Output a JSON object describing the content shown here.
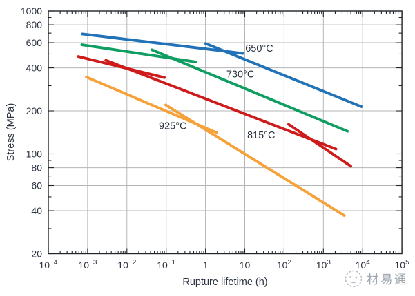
{
  "watermark": {
    "text": "材易通",
    "logo": "panda-face-icon"
  },
  "colors": {
    "axis": "#1f2429",
    "grid": "#b5b5b5",
    "text": "#2b3340",
    "watermark": "#b6bec5",
    "background": "#ffffff"
  },
  "chart_data": {
    "type": "line",
    "title": "",
    "xlabel": "Rupture lifetime (h)",
    "ylabel": "Stress (MPa)",
    "x_scale": "log",
    "y_scale": "log",
    "xlim": [
      0.0001,
      100000
    ],
    "ylim": [
      20,
      1000
    ],
    "grid": "major-gridlines-on",
    "legend": "inline-labels",
    "x_ticks": {
      "labels": [
        {
          "v": 0.0001,
          "base": "10",
          "sup": "−4"
        },
        {
          "v": 0.001,
          "base": "10",
          "sup": "−3"
        },
        {
          "v": 0.01,
          "base": "10",
          "sup": "−2"
        },
        {
          "v": 0.1,
          "base": "10",
          "sup": "−1"
        },
        {
          "v": 1,
          "base": "1",
          "sup": ""
        },
        {
          "v": 10,
          "base": "10",
          "sup": ""
        },
        {
          "v": 100,
          "base": "10",
          "sup": "2"
        },
        {
          "v": 1000,
          "base": "10",
          "sup": "3"
        },
        {
          "v": 10000,
          "base": "10",
          "sup": "4"
        },
        {
          "v": 100000,
          "base": "10",
          "sup": "5"
        }
      ],
      "grid_decades": [
        -3,
        -2,
        -1,
        0,
        1,
        2,
        3,
        4
      ],
      "minor_decades": [
        -4,
        -3,
        -2,
        -1,
        0,
        1,
        2,
        3,
        4
      ]
    },
    "y_ticks": {
      "labeled": [
        20,
        40,
        60,
        80,
        100,
        200,
        400,
        600,
        800,
        1000
      ],
      "minor": [
        30,
        50,
        70,
        90,
        300,
        500,
        700,
        900
      ],
      "grid": [
        40,
        60,
        80,
        100,
        200,
        400,
        600,
        800
      ]
    },
    "series": [
      {
        "name": "650°C",
        "color": "#2272b8",
        "label_t": 10.3,
        "label_s": 550,
        "segments": [
          [
            [
              0.00073,
              690
            ],
            [
              8.9,
              505
            ]
          ],
          [
            [
              1.0,
              592
            ],
            [
              9300,
              214
            ]
          ]
        ]
      },
      {
        "name": "730°C",
        "color": "#0f9d62",
        "label_t": 3.4,
        "label_s": 362,
        "segments": [
          [
            [
              0.00071,
              580
            ],
            [
              0.56,
              440
            ]
          ],
          [
            [
              0.043,
              535
            ],
            [
              4100,
              144
            ]
          ]
        ]
      },
      {
        "name": "815°C",
        "color": "#ce1b1b",
        "label_t": 11.5,
        "label_s": 136,
        "segments": [
          [
            [
              0.00058,
              480
            ],
            [
              0.09,
              342
            ]
          ],
          [
            [
              0.0029,
              452
            ],
            [
              2100,
              108
            ]
          ],
          [
            [
              130,
              161
            ],
            [
              5000,
              82
            ]
          ]
        ]
      },
      {
        "name": "925°C",
        "color": "#f6a139",
        "label_t": 0.065,
        "label_s": 158,
        "segments": [
          [
            [
              0.00093,
              345
            ],
            [
              1.9,
              141
            ]
          ],
          [
            [
              0.097,
              220
            ],
            [
              3400,
              37
            ]
          ]
        ]
      }
    ]
  }
}
